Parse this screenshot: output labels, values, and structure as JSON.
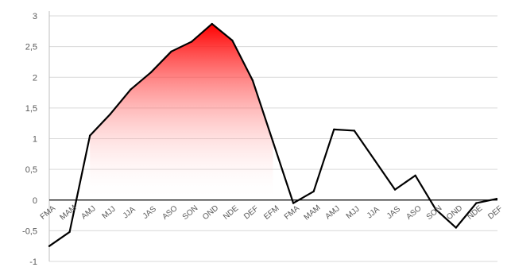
{
  "chart_data": {
    "type": "line",
    "title": "",
    "xlabel": "",
    "ylabel": "",
    "ylim": [
      -1,
      3
    ],
    "yticks": [
      -1,
      -0.5,
      0,
      0.5,
      1,
      1.5,
      2,
      2.5,
      3
    ],
    "ytick_labels": [
      "-1",
      "-0,5",
      "0",
      "0,5",
      "1",
      "1,5",
      "2",
      "2,5",
      "3"
    ],
    "grid": true,
    "legend": "none",
    "categories": [
      "FMA",
      "MAM",
      "AMJ",
      "MJJ",
      "JJA",
      "JAS",
      "ASO",
      "SON",
      "OND",
      "NDE",
      "DEF",
      "EFM",
      "FMA",
      "MAM",
      "AMJ",
      "MJJ",
      "JJA",
      "JAS",
      "ASO",
      "SON",
      "OND",
      "NDE",
      "DEF"
    ],
    "series": [
      {
        "values": [
          -0.75,
          -0.52,
          1.05,
          1.4,
          1.8,
          2.08,
          2.42,
          2.58,
          2.87,
          2.6,
          1.95,
          0.95,
          -0.05,
          0.14,
          1.15,
          1.13,
          0.65,
          0.17,
          0.4,
          -0.15,
          -0.45,
          -0.05,
          0.02
        ],
        "color": "#000000"
      }
    ],
    "highlight": {
      "from_category_index": 2,
      "to_category_index": 11,
      "color_top": "#ff0000",
      "color_bottom": "#ffffff"
    }
  }
}
